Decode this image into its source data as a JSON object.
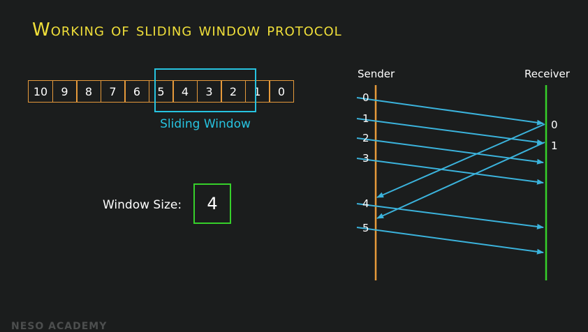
{
  "title": "Working of sliding window protocol",
  "frames": [
    "10",
    "9",
    "8",
    "7",
    "6",
    "5",
    "4",
    "3",
    "2",
    "1",
    "0"
  ],
  "window_label": "Sliding Window",
  "window_size": {
    "label": "Window Size:",
    "value": "4"
  },
  "sender": {
    "label": "Sender",
    "numbers": {
      "s0": "0",
      "s1": "1",
      "s2": "2",
      "s3": "3",
      "s4": "4",
      "s5": "5"
    }
  },
  "receiver": {
    "label": "Receiver",
    "acks": {
      "a0": "0",
      "a1": "1"
    }
  },
  "watermark": "NESO ACADEMY",
  "colors": {
    "title": "#f0df3a",
    "frame_border": "#e69a3b",
    "window": "#27c3e0",
    "arrow": "#3bb3dc",
    "sender_line": "#e69a3b",
    "receiver_line": "#36d02a"
  }
}
